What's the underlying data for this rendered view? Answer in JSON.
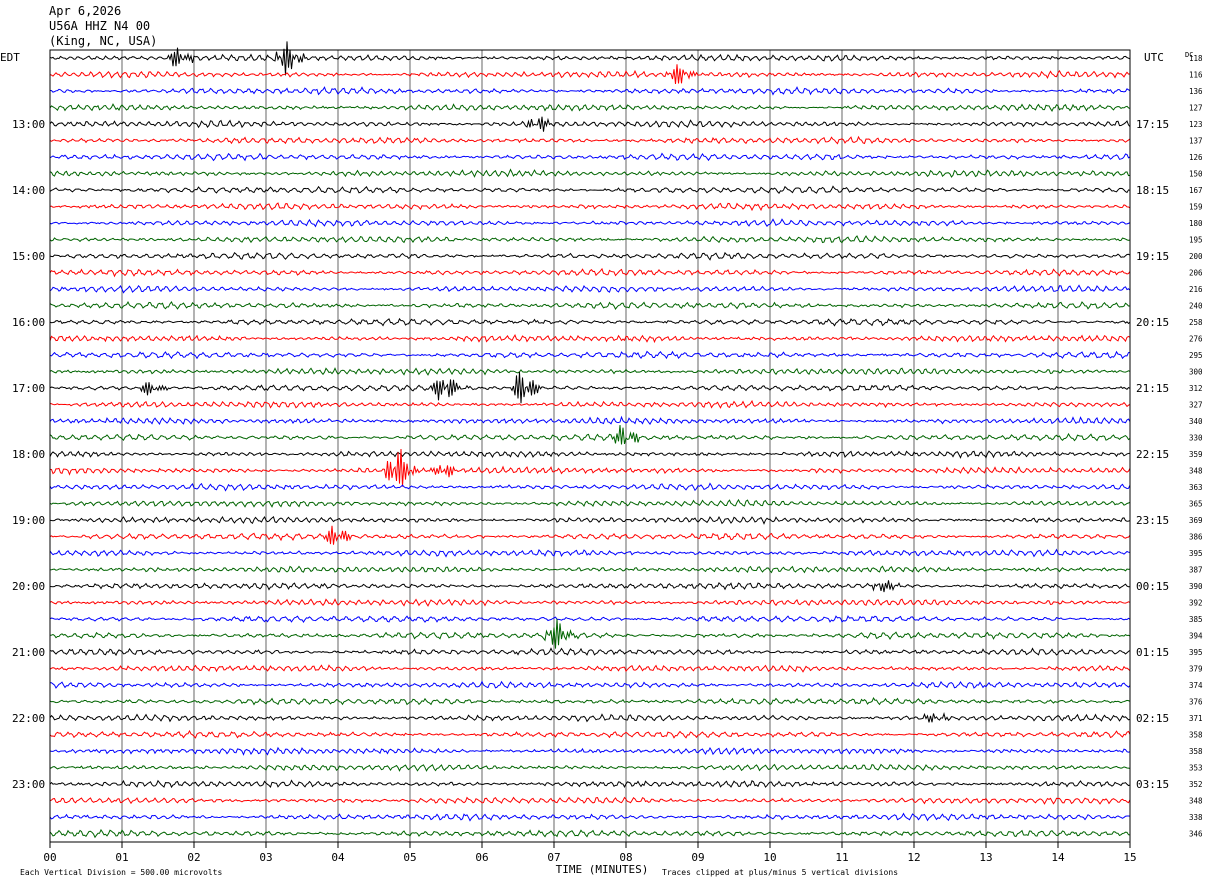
{
  "header": {
    "date": "Apr 6,2026",
    "station": "U56A HHZ N4 00",
    "location": "(King, NC, USA)"
  },
  "chart_data": {
    "type": "line",
    "title": "",
    "left_axis_label": "EDT",
    "right_axis_label": "UTC",
    "dc_label": "DC",
    "xlabel": "TIME (MINUTES)",
    "xlim": [
      0,
      15
    ],
    "x_ticks": [
      "00",
      "01",
      "02",
      "03",
      "04",
      "05",
      "06",
      "07",
      "08",
      "09",
      "10",
      "11",
      "12",
      "13",
      "14",
      "15"
    ],
    "left_hour_labels": [
      "13:00",
      "14:00",
      "15:00",
      "16:00",
      "17:00",
      "18:00",
      "19:00",
      "20:00",
      "21:00",
      "22:00",
      "23:00"
    ],
    "right_hour_labels": [
      "17:15",
      "18:15",
      "19:15",
      "20:15",
      "21:15",
      "22:15",
      "23:15",
      "00:15",
      "01:15",
      "02:15",
      "03:15"
    ],
    "hour_label_first_trace": 4,
    "traces_per_hour": 4,
    "trace_colors": [
      "#000000",
      "#ff0000",
      "#0000ff",
      "#006400"
    ],
    "dc_offsets": [
      118,
      116,
      136,
      127,
      123,
      137,
      126,
      150,
      167,
      159,
      180,
      195,
      200,
      206,
      216,
      240,
      258,
      276,
      295,
      300,
      312,
      327,
      340,
      330,
      359,
      348,
      363,
      365,
      369,
      386,
      395,
      387,
      390,
      392,
      385,
      394,
      395,
      379,
      374,
      376,
      371,
      358,
      358,
      353,
      352,
      348,
      338,
      346
    ],
    "clip_limit_divisions": 5,
    "events": [
      {
        "trace": 0,
        "minute": 1.8,
        "amp": 1.0
      },
      {
        "trace": 0,
        "minute": 3.3,
        "amp": 1.8
      },
      {
        "trace": 1,
        "minute": 8.75,
        "amp": 1.3
      },
      {
        "trace": 4,
        "minute": 6.8,
        "amp": 0.9
      },
      {
        "trace": 20,
        "minute": 1.4,
        "amp": 0.8
      },
      {
        "trace": 20,
        "minute": 5.5,
        "amp": 1.6
      },
      {
        "trace": 20,
        "minute": 6.6,
        "amp": 1.9
      },
      {
        "trace": 23,
        "minute": 8.0,
        "amp": 1.3
      },
      {
        "trace": 25,
        "minute": 4.85,
        "amp": 2.8
      },
      {
        "trace": 25,
        "minute": 5.5,
        "amp": 0.9
      },
      {
        "trace": 29,
        "minute": 4.0,
        "amp": 1.2
      },
      {
        "trace": 32,
        "minute": 11.6,
        "amp": 0.7
      },
      {
        "trace": 35,
        "minute": 7.05,
        "amp": 1.6
      },
      {
        "trace": 40,
        "minute": 12.3,
        "amp": 0.6
      }
    ],
    "footer_left": "Each Vertical Division =  500.00 microvolts",
    "footer_right": "Traces clipped at plus/minus 5 vertical divisions"
  }
}
